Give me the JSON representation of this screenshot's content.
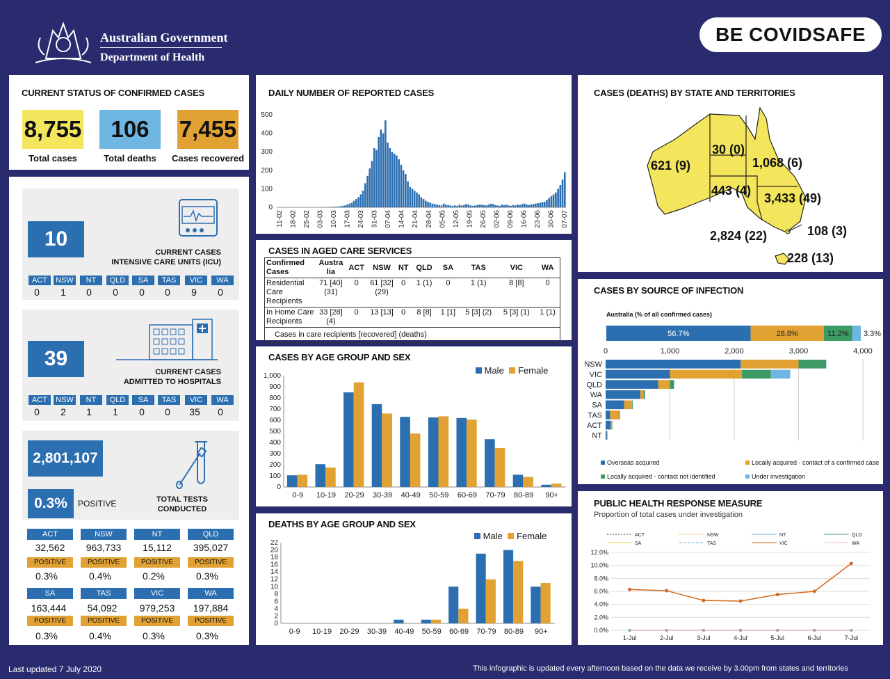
{
  "header": {
    "gov_line1": "Australian Government",
    "gov_line2": "Department of Health",
    "covidsafe_be": "BE COVID",
    "covidsafe_safe": "SAFE"
  },
  "status": {
    "title": "CURRENT STATUS OF CONFIRMED CASES",
    "total_cases": "8,755",
    "total_cases_label": "Total cases",
    "total_deaths": "106",
    "total_deaths_label": "Total deaths",
    "recovered": "7,455",
    "recovered_label": "Cases recovered",
    "colors": {
      "cases": "#f3e55c",
      "deaths": "#6fb6e3",
      "recovered": "#e1a233"
    }
  },
  "icu": {
    "value": "10",
    "caption1": "CURRENT CASES",
    "caption2": "INTENSIVE CARE UNITS (ICU)",
    "states": [
      "ACT",
      "NSW",
      "NT",
      "QLD",
      "SA",
      "TAS",
      "VIC",
      "WA"
    ],
    "values": [
      "0",
      "1",
      "0",
      "0",
      "0",
      "0",
      "9",
      "0"
    ]
  },
  "hosp": {
    "value": "39",
    "caption1": "CURRENT CASES",
    "caption2": "ADMITTED TO HOSPITALS",
    "states": [
      "ACT",
      "NSW",
      "NT",
      "QLD",
      "SA",
      "TAS",
      "VIC",
      "WA"
    ],
    "values": [
      "0",
      "2",
      "1",
      "1",
      "0",
      "0",
      "35",
      "0"
    ]
  },
  "tests": {
    "total": "2,801,107",
    "positive_pct": "0.3%",
    "positive_label": "POSITIVE",
    "caption1": "TOTAL TESTS",
    "caption2": "CONDUCTED",
    "badge": "POSITIVE",
    "rows": [
      [
        {
          "state": "ACT",
          "tests": "32,562",
          "pct": "0.3%"
        },
        {
          "state": "NSW",
          "tests": "963,733",
          "pct": "0.4%"
        },
        {
          "state": "NT",
          "tests": "15,112",
          "pct": "0.2%"
        },
        {
          "state": "QLD",
          "tests": "395,027",
          "pct": "0.3%"
        }
      ],
      [
        {
          "state": "SA",
          "tests": "163,444",
          "pct": "0.3%"
        },
        {
          "state": "TAS",
          "tests": "54,092",
          "pct": "0.4%"
        },
        {
          "state": "VIC",
          "tests": "979,253",
          "pct": "0.3%"
        },
        {
          "state": "WA",
          "tests": "197,884",
          "pct": "0.3%"
        }
      ]
    ]
  },
  "daily": {
    "title": "DAILY NUMBER OF REPORTED CASES"
  },
  "aged": {
    "title": "CASES IN AGED CARE SERVICES",
    "headers": [
      "Confirmed Cases",
      "Austra lia",
      "ACT",
      "NSW",
      "NT",
      "QLD",
      "SA",
      "TAS",
      "VIC",
      "WA"
    ],
    "row1": [
      "Residential Care Recipients",
      "71 [40] (31)",
      "0",
      "61 [32] (29)",
      "0",
      "1 (1)",
      "0",
      "1 (1)",
      "8 [8]",
      "0"
    ],
    "row2": [
      "In Home Care Recipients",
      "33 [28] (4)",
      "0",
      "13 [13]",
      "0",
      "8 [8]",
      "1 [1]",
      "5 [3] (2)",
      "5 [3] (1)",
      "1 (1)"
    ],
    "note": "Cases in care recipients [recovered] (deaths)"
  },
  "map": {
    "title": "CASES (DEATHS) BY STATE AND TERRITORIES",
    "wa": "621 (9)",
    "nt": "30 (0)",
    "qld": "1,068 (6)",
    "sa": "443 (4)",
    "nsw": "3,433 (49)",
    "act": "108 (3)",
    "vic": "2,824 (22)",
    "tas": "228 (13)",
    "fill": "#f3e55c"
  },
  "source": {
    "title": "CASES BY SOURCE OF INFECTION",
    "subtitle": "Australia (% of all confirmed cases)",
    "pct_labels": [
      "56.7%",
      "28.8%",
      "11.2%",
      "3.3%"
    ],
    "legend": [
      "Overseas acquired",
      "Locally acquired - contact of a confirmed case",
      "Locally acquired - contact not identified",
      "Under investigation"
    ],
    "colors": [
      "#2c6fb0",
      "#e1a233",
      "#3c9a64",
      "#6fb6e3"
    ]
  },
  "age_cases": {
    "title": "CASES BY AGE GROUP AND SEX",
    "legend_male": "Male",
    "legend_female": "Female"
  },
  "age_deaths": {
    "title": "DEATHS BY AGE GROUP AND SEX",
    "legend_male": "Male",
    "legend_female": "Female"
  },
  "phr": {
    "title": "PUBLIC HEALTH RESPONSE MEASURE",
    "subtitle": "Proportion of total cases under investigation",
    "legend": [
      "ACT",
      "NSW",
      "NT",
      "QLD",
      "SA",
      "TAS",
      "VIC",
      "WA"
    ]
  },
  "footer": {
    "left": "Last updated 7 July 2020",
    "right": "This infographic is updated every afternoon based on the data we receive by 3.00pm from states and territories"
  },
  "chart_data": [
    {
      "type": "bar",
      "title": "DAILY NUMBER OF REPORTED CASES",
      "ylim": [
        0,
        500
      ],
      "yticks": [
        "0",
        "100",
        "200",
        "300",
        "400",
        "500"
      ],
      "xtick_labels": [
        "11-02",
        "18-02",
        "25-02",
        "03-03",
        "10-03",
        "17-03",
        "24-03",
        "31-03",
        "07-04",
        "14-04",
        "21-04",
        "28-04",
        "05-05",
        "12-05",
        "19-05",
        "26-05",
        "02-06",
        "09-06",
        "16-06",
        "23-06",
        "30-06",
        "07-07"
      ],
      "values": [
        0,
        0,
        0,
        0,
        0,
        0,
        0,
        0,
        0,
        0,
        0,
        0,
        0,
        0,
        0,
        0,
        0,
        0,
        0,
        0,
        0,
        1,
        2,
        2,
        3,
        3,
        3,
        5,
        5,
        8,
        10,
        15,
        20,
        25,
        35,
        45,
        55,
        70,
        90,
        130,
        170,
        210,
        250,
        320,
        310,
        380,
        420,
        400,
        470,
        350,
        320,
        300,
        290,
        280,
        260,
        230,
        200,
        180,
        140,
        110,
        100,
        90,
        80,
        70,
        55,
        45,
        35,
        30,
        25,
        20,
        18,
        15,
        12,
        10,
        20,
        15,
        12,
        10,
        8,
        10,
        8,
        15,
        10,
        12,
        18,
        15,
        10,
        8,
        10,
        12,
        15,
        14,
        12,
        10,
        15,
        20,
        18,
        12,
        10,
        8,
        15,
        12,
        14,
        10,
        8,
        12,
        10,
        15,
        12,
        18,
        20,
        15,
        12,
        16,
        18,
        20,
        22,
        25,
        28,
        30,
        40,
        50,
        60,
        70,
        80,
        100,
        120,
        150,
        190
      ],
      "bar_color": "#2c6fb0"
    },
    {
      "type": "bar",
      "title": "CASES BY AGE GROUP AND SEX",
      "categories": [
        "0-9",
        "10-19",
        "20-29",
        "30-39",
        "40-49",
        "50-59",
        "60-69",
        "70-79",
        "80-89",
        "90+"
      ],
      "ylim": [
        0,
        1000
      ],
      "yticks": [
        "0",
        "100",
        "200",
        "300",
        "400",
        "500",
        "600",
        "700",
        "800",
        "900",
        "1,000"
      ],
      "series": [
        {
          "name": "Male",
          "values": [
            105,
            205,
            850,
            745,
            630,
            625,
            620,
            430,
            110,
            20
          ],
          "color": "#2c6fb0"
        },
        {
          "name": "Female",
          "values": [
            110,
            175,
            940,
            660,
            480,
            635,
            605,
            350,
            90,
            30
          ],
          "color": "#e1a233"
        }
      ]
    },
    {
      "type": "bar",
      "title": "DEATHS BY AGE GROUP AND SEX",
      "categories": [
        "0-9",
        "10-19",
        "20-29",
        "30-39",
        "40-49",
        "50-59",
        "60-69",
        "70-79",
        "80-89",
        "90+"
      ],
      "ylim": [
        0,
        22
      ],
      "yticks": [
        "0",
        "2",
        "4",
        "6",
        "8",
        "10",
        "12",
        "14",
        "16",
        "18",
        "20",
        "22"
      ],
      "series": [
        {
          "name": "Male",
          "values": [
            0,
            0,
            0,
            0,
            1,
            1,
            10,
            19,
            20,
            10
          ],
          "color": "#2c6fb0"
        },
        {
          "name": "Female",
          "values": [
            0,
            0,
            0,
            0,
            0,
            1,
            4,
            12,
            17,
            11
          ],
          "color": "#e1a233"
        }
      ]
    },
    {
      "type": "bar",
      "title": "CASES BY SOURCE OF INFECTION",
      "categories": [
        "NSW",
        "VIC",
        "QLD",
        "WA",
        "SA",
        "TAS",
        "ACT",
        "NT"
      ],
      "xlim": [
        0,
        4000
      ],
      "xticks": [
        "0",
        "1,000",
        "2,000",
        "3,000",
        "4,000"
      ],
      "stacked": true,
      "series": [
        {
          "name": "Overseas acquired",
          "values": [
            2100,
            1000,
            820,
            540,
            290,
            70,
            80,
            20
          ],
          "color": "#2c6fb0"
        },
        {
          "name": "Locally acquired - contact of a confirmed case",
          "values": [
            900,
            1120,
            180,
            50,
            120,
            150,
            20,
            5
          ],
          "color": "#e1a233"
        },
        {
          "name": "Locally acquired - contact not identified",
          "values": [
            430,
            450,
            60,
            20,
            10,
            5,
            5,
            3
          ],
          "color": "#3c9a64"
        },
        {
          "name": "Under investigation",
          "values": [
            3,
            300,
            8,
            5,
            5,
            3,
            3,
            2
          ],
          "color": "#6fb6e3"
        }
      ]
    },
    {
      "type": "line",
      "title": "PUBLIC HEALTH RESPONSE MEASURE",
      "categories": [
        "1-Jul",
        "2-Jul",
        "3-Jul",
        "4-Jul",
        "5-Jul",
        "6-Jul",
        "7-Jul"
      ],
      "ylim": [
        0,
        12
      ],
      "yticks": [
        "0.0%",
        "2.0%",
        "4.0%",
        "6.0%",
        "8.0%",
        "10.0%",
        "12.0%"
      ],
      "series": [
        {
          "name": "VIC",
          "values": [
            6.3,
            6.1,
            4.6,
            4.5,
            5.5,
            6.0,
            10.3
          ],
          "color": "#d2691e"
        },
        {
          "name": "ACT",
          "values": [
            0,
            0,
            0,
            0,
            0,
            0,
            0
          ],
          "color": "#333333"
        },
        {
          "name": "NSW",
          "values": [
            0,
            0,
            0,
            0,
            0,
            0,
            0
          ],
          "color": "#e1a233"
        },
        {
          "name": "NT",
          "values": [
            0,
            0,
            0,
            0,
            0,
            0,
            0
          ],
          "color": "#6fb6e3"
        },
        {
          "name": "QLD",
          "values": [
            0,
            0,
            0,
            0,
            0,
            0,
            0
          ],
          "color": "#3c9a64"
        },
        {
          "name": "SA",
          "values": [
            0,
            0,
            0,
            0,
            0,
            0,
            0
          ],
          "color": "#e6d84a"
        },
        {
          "name": "TAS",
          "values": [
            0,
            0,
            0,
            0,
            0,
            0,
            0
          ],
          "color": "#6fb6e3"
        },
        {
          "name": "WA",
          "values": [
            0,
            0,
            0,
            0,
            0,
            0,
            0
          ],
          "color": "#d88aa0"
        }
      ]
    }
  ]
}
